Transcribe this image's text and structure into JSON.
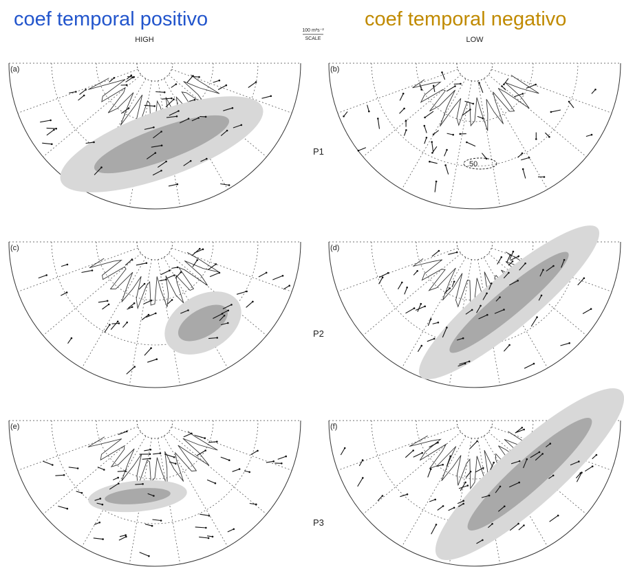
{
  "header": {
    "left_title": "coef temporal positivo",
    "right_title": "coef temporal negativo",
    "left_subtitle": "HIGH",
    "right_subtitle": "LOW",
    "scale_value": "100 m²s⁻²",
    "scale_label": "SCALE"
  },
  "panels": [
    {
      "label": "(a)"
    },
    {
      "label": "(b)",
      "annotation": "50"
    },
    {
      "label": "(c)"
    },
    {
      "label": "(d)"
    },
    {
      "label": "(e)"
    },
    {
      "label": "(f)"
    }
  ],
  "rows": [
    "P1",
    "P2",
    "P3"
  ]
}
